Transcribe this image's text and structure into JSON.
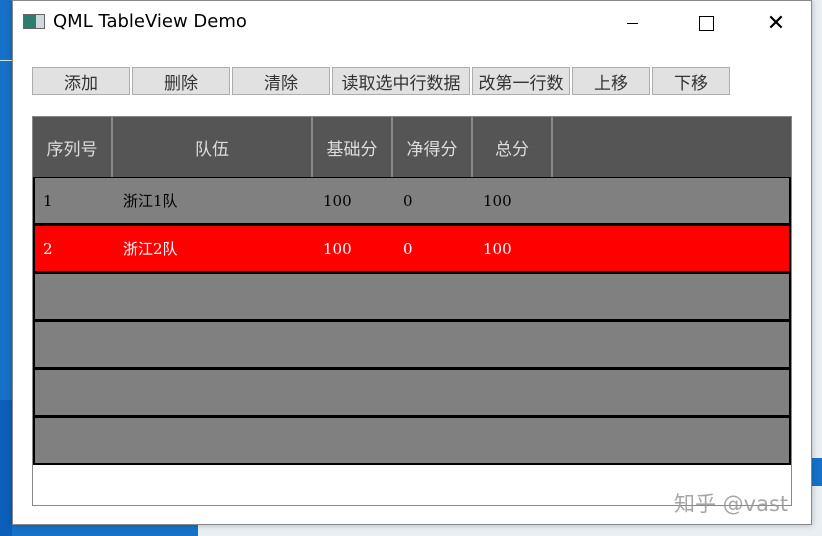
{
  "window": {
    "title": "QML TableView Demo",
    "minimize_icon": "minimize-icon",
    "maximize_icon": "maximize-icon",
    "close_icon": "close-icon"
  },
  "toolbar": {
    "buttons": [
      "添加",
      "删除",
      "清除",
      "读取选中行数据",
      "改第一行数",
      "上移",
      "下移"
    ]
  },
  "table": {
    "columns": [
      "序列号",
      "队伍",
      "基础分",
      "净得分",
      "总分",
      ""
    ],
    "rows": [
      {
        "id": "1",
        "team": "浙江1队",
        "base": "100",
        "net": "0",
        "total": "100",
        "selected": false
      },
      {
        "id": "2",
        "team": "浙江2队",
        "base": "100",
        "net": "0",
        "total": "100",
        "selected": true
      }
    ],
    "colors": {
      "header": "#555555",
      "row": "#808080",
      "selected": "#ff0000"
    }
  },
  "watermark": "知乎 @vast"
}
